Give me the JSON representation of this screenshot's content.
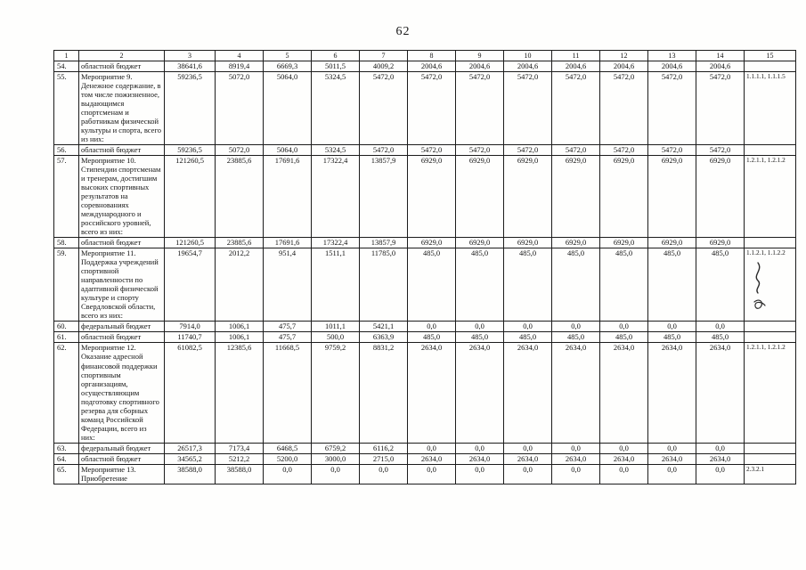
{
  "page": {
    "number": "62"
  },
  "table": {
    "header_cols": [
      "1",
      "2",
      "3",
      "4",
      "5",
      "6",
      "7",
      "8",
      "9",
      "10",
      "11",
      "12",
      "13",
      "14",
      "15"
    ],
    "rows": [
      {
        "num": "54.",
        "name": "областной бюджет",
        "values": [
          "38641,6",
          "8919,4",
          "6669,3",
          "5011,5",
          "4009,2",
          "2004,6",
          "2004,6",
          "2004,6",
          "2004,6",
          "2004,6",
          "2004,6",
          "2004,6"
        ],
        "ref": ""
      },
      {
        "num": "55.",
        "name": "Мероприятие 9. Денежное содержание, в том числе пожизненное, выдающимся спортсменам и работникам физической культуры и спорта, всего из них:",
        "values": [
          "59236,5",
          "5072,0",
          "5064,0",
          "5324,5",
          "5472,0",
          "5472,0",
          "5472,0",
          "5472,0",
          "5472,0",
          "5472,0",
          "5472,0",
          "5472,0"
        ],
        "ref": "1.1.1.1, 1.1.1.5"
      },
      {
        "num": "56.",
        "name": "областной бюджет",
        "values": [
          "59236,5",
          "5072,0",
          "5064,0",
          "5324,5",
          "5472,0",
          "5472,0",
          "5472,0",
          "5472,0",
          "5472,0",
          "5472,0",
          "5472,0",
          "5472,0"
        ],
        "ref": ""
      },
      {
        "num": "57.",
        "name": "Мероприятие 10. Стипендии спортсменам и тренерам, достигшим высоких спортивных результатов на соревнованиях международного и российского уровней, всего из них:",
        "values": [
          "121260,5",
          "23885,6",
          "17691,6",
          "17322,4",
          "13857,9",
          "6929,0",
          "6929,0",
          "6929,0",
          "6929,0",
          "6929,0",
          "6929,0",
          "6929,0"
        ],
        "ref": "1.2.1.1, 1.2.1.2"
      },
      {
        "num": "58.",
        "name": "областной бюджет",
        "values": [
          "121260,5",
          "23885,6",
          "17691,6",
          "17322,4",
          "13857,9",
          "6929,0",
          "6929,0",
          "6929,0",
          "6929,0",
          "6929,0",
          "6929,0",
          "6929,0"
        ],
        "ref": ""
      },
      {
        "num": "59.",
        "name": "Мероприятие 11. Поддержка учреждений спортивной направленности по адаптивной физической культуре и спорту Свердловской области, всего из них:",
        "values": [
          "19654,7",
          "2012,2",
          "951,4",
          "1511,1",
          "11785,0",
          "485,0",
          "485,0",
          "485,0",
          "485,0",
          "485,0",
          "485,0",
          "485,0"
        ],
        "ref": "1.1.2.1, 1.1.2.2"
      },
      {
        "num": "60.",
        "name": "федеральный бюджет",
        "values": [
          "7914,0",
          "1006,1",
          "475,7",
          "1011,1",
          "5421,1",
          "0,0",
          "0,0",
          "0,0",
          "0,0",
          "0,0",
          "0,0",
          "0,0"
        ],
        "ref": ""
      },
      {
        "num": "61.",
        "name": "областной бюджет",
        "values": [
          "11740,7",
          "1006,1",
          "475,7",
          "500,0",
          "6363,9",
          "485,0",
          "485,0",
          "485,0",
          "485,0",
          "485,0",
          "485,0",
          "485,0"
        ],
        "ref": ""
      },
      {
        "num": "62.",
        "name": "Мероприятие 12. Оказание адресной финансовой поддержки спортивным организациям, осуществляющим подготовку спортивного резерва для сборных команд Российской Федерации, всего из них:",
        "values": [
          "61082,5",
          "12385,6",
          "11668,5",
          "9759,2",
          "8831,2",
          "2634,0",
          "2634,0",
          "2634,0",
          "2634,0",
          "2634,0",
          "2634,0",
          "2634,0"
        ],
        "ref": "1.2.1.1, 1.2.1.2"
      },
      {
        "num": "63.",
        "name": "федеральный бюджет",
        "values": [
          "26517,3",
          "7173,4",
          "6468,5",
          "6759,2",
          "6116,2",
          "0,0",
          "0,0",
          "0,0",
          "0,0",
          "0,0",
          "0,0",
          "0,0"
        ],
        "ref": ""
      },
      {
        "num": "64.",
        "name": "областной бюджет",
        "values": [
          "34565,2",
          "5212,2",
          "5200,0",
          "3000,0",
          "2715,0",
          "2634,0",
          "2634,0",
          "2634,0",
          "2634,0",
          "2634,0",
          "2634,0",
          "2634,0"
        ],
        "ref": ""
      },
      {
        "num": "65.",
        "name": "Мероприятие 13. Приобретение",
        "values": [
          "38588,0",
          "38588,0",
          "0,0",
          "0,0",
          "0,0",
          "0,0",
          "0,0",
          "0,0",
          "0,0",
          "0,0",
          "0,0",
          "0,0"
        ],
        "ref": "2.3.2.1"
      }
    ]
  }
}
